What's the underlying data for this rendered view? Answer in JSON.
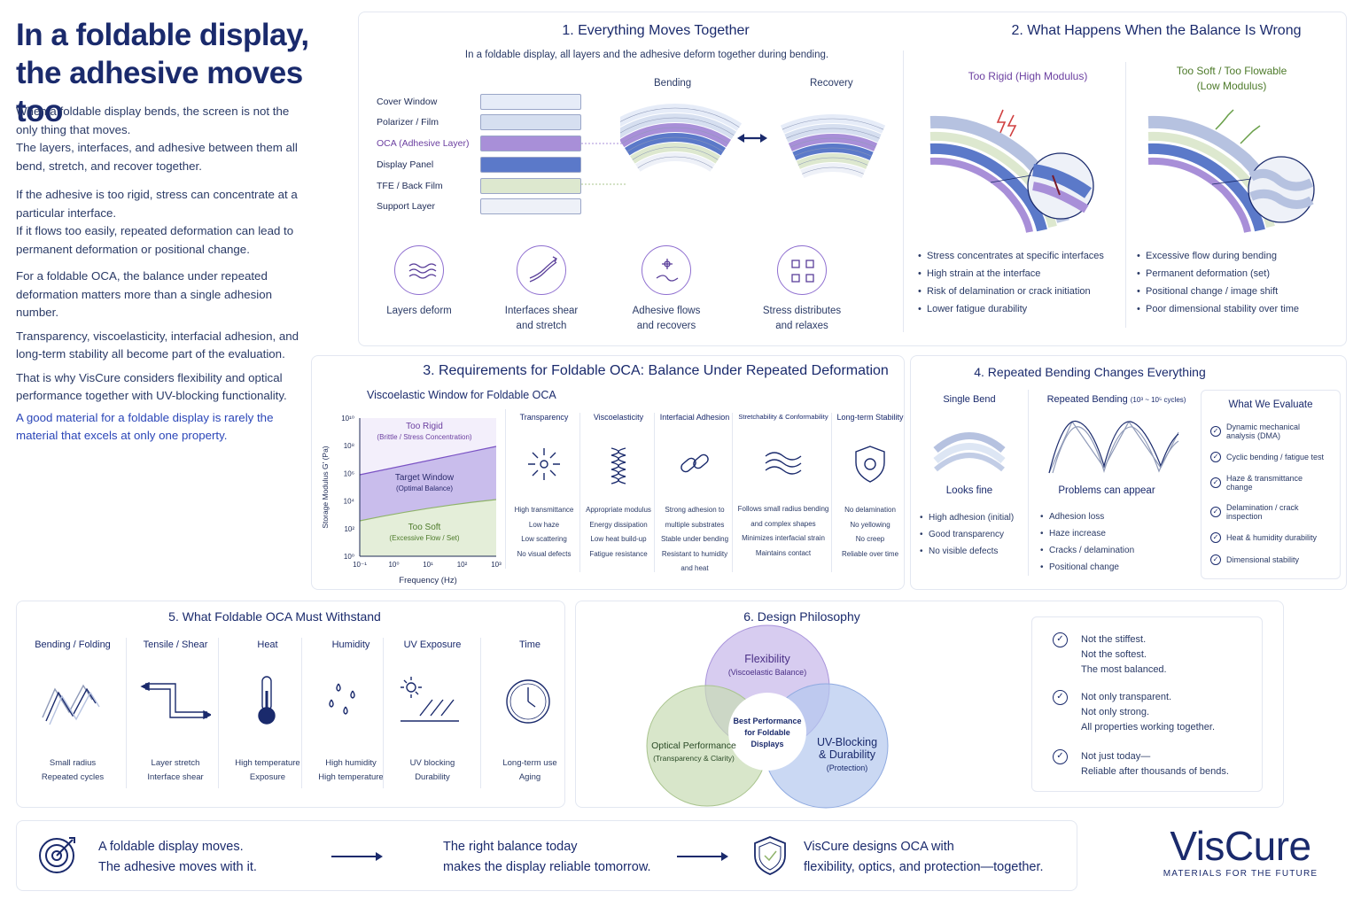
{
  "headline": {
    "line1": "In a foldable display,",
    "line2": "the adhesive moves too"
  },
  "intro": {
    "p1": "When a foldable display bends, the screen is not the only thing that moves.",
    "p1b": "The layers, interfaces, and adhesive between them all bend, stretch, and recover together.",
    "p2": "If the adhesive is too rigid, stress can concentrate at a particular interface.",
    "p2b": "If it flows too easily, repeated deformation can lead to permanent deformation or positional change.",
    "p3": "For a foldable OCA, the balance under repeated deformation matters more than a single adhesion number.",
    "p4": "Transparency, viscoelasticity, interfacial adhesion, and long-term stability all become part of the evaluation.",
    "p5": "That is why VisCure considers flexibility and optical performance together with UV-blocking functionality.",
    "p6": "A good material for a foldable display is rarely the material that excels at only one property."
  },
  "s1": {
    "title": "1. Everything Moves Together",
    "subtitle": "In a foldable display, all layers and the adhesive deform together during bending.",
    "bending": "Bending",
    "recovery": "Recovery",
    "layers": [
      {
        "label": "Cover Window",
        "color": "#e6ecf8"
      },
      {
        "label": "Polarizer / Film",
        "color": "#d6dff0"
      },
      {
        "label": "OCA (Adhesive Layer)",
        "color": "#a88fd8"
      },
      {
        "label": "Display Panel",
        "color": "#5b79c9"
      },
      {
        "label": "TFE / Back Film",
        "color": "#dde8cf"
      },
      {
        "label": "Support Layer",
        "color": "#eef1f8"
      }
    ],
    "icons": [
      {
        "l1": "Layers deform",
        "l2": ""
      },
      {
        "l1": "Interfaces shear",
        "l2": "and stretch"
      },
      {
        "l1": "Adhesive flows",
        "l2": "and recovers"
      },
      {
        "l1": "Stress distributes",
        "l2": "and relaxes"
      }
    ]
  },
  "s2": {
    "title": "2. What Happens When the Balance Is Wrong",
    "rigid_title": "Too Rigid (High Modulus)",
    "soft_title_1": "Too Soft / Too Flowable",
    "soft_title_2": "(Low Modulus)",
    "rigid_points": [
      "Stress concentrates at specific interfaces",
      "High strain at the interface",
      "Risk of delamination or crack initiation",
      "Lower fatigue durability"
    ],
    "soft_points": [
      "Excessive flow during bending",
      "Permanent deformation (set)",
      "Positional change / image shift",
      "Poor dimensional stability over time"
    ]
  },
  "s3": {
    "title": "3. Requirements for Foldable OCA: Balance Under Repeated Deformation",
    "chart_title": "Viscoelastic Window for Foldable OCA",
    "cols": [
      {
        "title": "Transparency",
        "lines": [
          "High transmittance",
          "Low haze",
          "Low scattering",
          "No visual defects"
        ]
      },
      {
        "title": "Viscoelasticity",
        "lines": [
          "Appropriate modulus",
          "Energy dissipation",
          "Low heat build-up",
          "Fatigue resistance"
        ]
      },
      {
        "title": "Interfacial Adhesion",
        "lines": [
          "Strong adhesion to",
          "multiple substrates",
          "Stable under bending",
          "Resistant to humidity",
          "and heat"
        ]
      },
      {
        "title": "Stretchability & Conformability",
        "lines": [
          "Follows small radius bending",
          "and complex shapes",
          "Minimizes interfacial strain",
          "Maintains contact"
        ]
      },
      {
        "title": "Long-term Stability",
        "lines": [
          "No delamination",
          "No yellowing",
          "No creep",
          "Reliable over time"
        ]
      }
    ]
  },
  "chart_data": {
    "type": "area",
    "title": "Viscoelastic Window for Foldable OCA",
    "xlabel": "Frequency (Hz)",
    "ylabel": "Storage Modulus G' (Pa)",
    "x_ticks": [
      "10⁻¹",
      "10⁰",
      "10¹",
      "10²",
      "10³"
    ],
    "y_ticks": [
      "10⁰",
      "10²",
      "10⁴",
      "10⁶",
      "10⁸",
      "10¹⁰"
    ],
    "log_x": true,
    "log_y": true,
    "regions": [
      {
        "name": "Too Rigid",
        "note": "(Brittle / Stress Concentration)"
      },
      {
        "name": "Target Window",
        "note": "(Optimal Balance)"
      },
      {
        "name": "Too Soft",
        "note": "(Excessive Flow / Set)"
      }
    ]
  },
  "s4": {
    "title": "4. Repeated Bending Changes Everything",
    "single_title": "Single Bend",
    "single_result": "Looks fine",
    "single_points": [
      "High adhesion (initial)",
      "Good transparency",
      "No visible defects"
    ],
    "rep_title": "Repeated Bending",
    "rep_cycles": "(10³ ~ 10⁵ cycles)",
    "rep_result": "Problems can appear",
    "rep_points": [
      "Adhesion loss",
      "Haze increase",
      "Cracks / delamination",
      "Positional change"
    ],
    "eval_title": "What We Evaluate",
    "eval_items": [
      "Dynamic mechanical analysis (DMA)",
      "Cyclic bending / fatigue test",
      "Haze & transmittance change",
      "Delamination / crack inspection",
      "Heat & humidity durability",
      "Dimensional stability"
    ]
  },
  "s5": {
    "title": "5. What Foldable OCA Must Withstand",
    "items": [
      {
        "title": "Bending / Folding",
        "l1": "Small radius",
        "l2": "Repeated cycles"
      },
      {
        "title": "Tensile / Shear",
        "l1": "Layer stretch",
        "l2": "Interface shear"
      },
      {
        "title": "Heat",
        "l1": "High temperature",
        "l2": "Exposure"
      },
      {
        "title": "Humidity",
        "l1": "High humidity",
        "l2": "High temperature"
      },
      {
        "title": "UV Exposure",
        "l1": "UV blocking",
        "l2": "Durability"
      },
      {
        "title": "Time",
        "l1": "Long-term use",
        "l2": "Aging"
      }
    ]
  },
  "s6": {
    "title": "6. Design Philosophy",
    "flex_title": "Flexibility",
    "flex_sub": "(Viscoelastic Balance)",
    "opt_title": "Optical Performance",
    "opt_sub": "(Transparency & Clarity)",
    "uv_title_1": "UV-Blocking",
    "uv_title_2": "& Durability",
    "uv_sub": "(Protection)",
    "center_1": "Best Performance",
    "center_2": "for Foldable",
    "center_3": "Displays",
    "principles": [
      [
        "Not the stiffest.",
        "Not the softest.",
        "The most balanced."
      ],
      [
        "Not only transparent.",
        "Not only strong.",
        "All properties working together."
      ],
      [
        "Not just today—",
        "Reliable after thousands of bends."
      ]
    ]
  },
  "footer": {
    "m1a": "A foldable display moves.",
    "m1b": "The adhesive moves with it.",
    "m2a": "The right balance today",
    "m2b": "makes the display reliable tomorrow.",
    "m3a": "VisCure designs OCA with",
    "m3b": "flexibility, optics, and protection—together.",
    "brand": "VisCure",
    "tagline": "MATERIALS FOR THE FUTURE"
  },
  "colors": {
    "navy": "#1a2a6c",
    "purple": "#7a52c4",
    "blue": "#5b79c9",
    "green": "#8fb36a"
  }
}
